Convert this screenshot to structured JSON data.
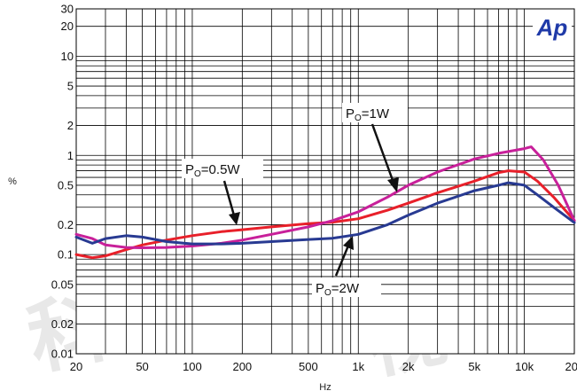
{
  "chart_data": {
    "type": "line",
    "title": "",
    "xlabel": "Hz",
    "ylabel": "%",
    "xscale": "log",
    "yscale": "log",
    "xlim": [
      20,
      20000
    ],
    "ylim": [
      0.01,
      30
    ],
    "grid": true,
    "x_ticks": [
      {
        "value": 20,
        "label": "20"
      },
      {
        "value": 50,
        "label": "50"
      },
      {
        "value": 100,
        "label": "100"
      },
      {
        "value": 200,
        "label": "200"
      },
      {
        "value": 500,
        "label": "500"
      },
      {
        "value": 1000,
        "label": "1k"
      },
      {
        "value": 2000,
        "label": "2k"
      },
      {
        "value": 5000,
        "label": "5k"
      },
      {
        "value": 10000,
        "label": "10k"
      },
      {
        "value": 20000,
        "label": "20k"
      }
    ],
    "y_ticks": [
      {
        "value": 0.01,
        "label": "0.01"
      },
      {
        "value": 0.02,
        "label": "0.02"
      },
      {
        "value": 0.05,
        "label": "0.05"
      },
      {
        "value": 0.1,
        "label": "0.1"
      },
      {
        "value": 0.2,
        "label": "0.2"
      },
      {
        "value": 0.5,
        "label": "0.5"
      },
      {
        "value": 1,
        "label": "1"
      },
      {
        "value": 2,
        "label": "2"
      },
      {
        "value": 5,
        "label": "5"
      },
      {
        "value": 10,
        "label": "10"
      },
      {
        "value": 20,
        "label": "20"
      },
      {
        "value": 30,
        "label": "30"
      }
    ],
    "series": [
      {
        "name": "Po=0.5W",
        "color": "#e8202a",
        "x": [
          20,
          25,
          30,
          40,
          50,
          70,
          100,
          150,
          200,
          300,
          500,
          700,
          1000,
          1500,
          2000,
          3000,
          5000,
          7000,
          8000,
          10000,
          12000,
          15000,
          20000
        ],
        "y": [
          0.1,
          0.093,
          0.097,
          0.112,
          0.125,
          0.14,
          0.155,
          0.17,
          0.178,
          0.19,
          0.205,
          0.212,
          0.23,
          0.28,
          0.33,
          0.42,
          0.55,
          0.67,
          0.7,
          0.68,
          0.55,
          0.38,
          0.22
        ]
      },
      {
        "name": "Po=1W",
        "color": "#c8209a",
        "x": [
          20,
          25,
          30,
          40,
          50,
          70,
          100,
          150,
          200,
          300,
          500,
          700,
          1000,
          1500,
          2000,
          3000,
          5000,
          7000,
          10000,
          11000,
          13000,
          16000,
          20000
        ],
        "y": [
          0.16,
          0.145,
          0.125,
          0.118,
          0.117,
          0.118,
          0.122,
          0.13,
          0.14,
          0.16,
          0.19,
          0.22,
          0.27,
          0.38,
          0.5,
          0.68,
          0.92,
          1.05,
          1.17,
          1.22,
          0.9,
          0.5,
          0.22
        ]
      },
      {
        "name": "Po=2W",
        "color": "#283a92",
        "x": [
          20,
          25,
          30,
          40,
          50,
          70,
          100,
          150,
          200,
          300,
          500,
          700,
          1000,
          1500,
          2000,
          3000,
          5000,
          7000,
          8000,
          10000,
          12000,
          15000,
          20000
        ],
        "y": [
          0.15,
          0.13,
          0.145,
          0.155,
          0.15,
          0.135,
          0.128,
          0.128,
          0.13,
          0.135,
          0.142,
          0.146,
          0.16,
          0.2,
          0.25,
          0.33,
          0.44,
          0.5,
          0.53,
          0.5,
          0.4,
          0.3,
          0.21
        ]
      }
    ],
    "annotations": [
      {
        "text": "P",
        "subscript": "O",
        "suffix": "=1W"
      },
      {
        "text": "P",
        "subscript": "O",
        "suffix": "=0.5W"
      },
      {
        "text": "P",
        "subscript": "O",
        "suffix": "=2W"
      }
    ],
    "logo": "Ap"
  }
}
